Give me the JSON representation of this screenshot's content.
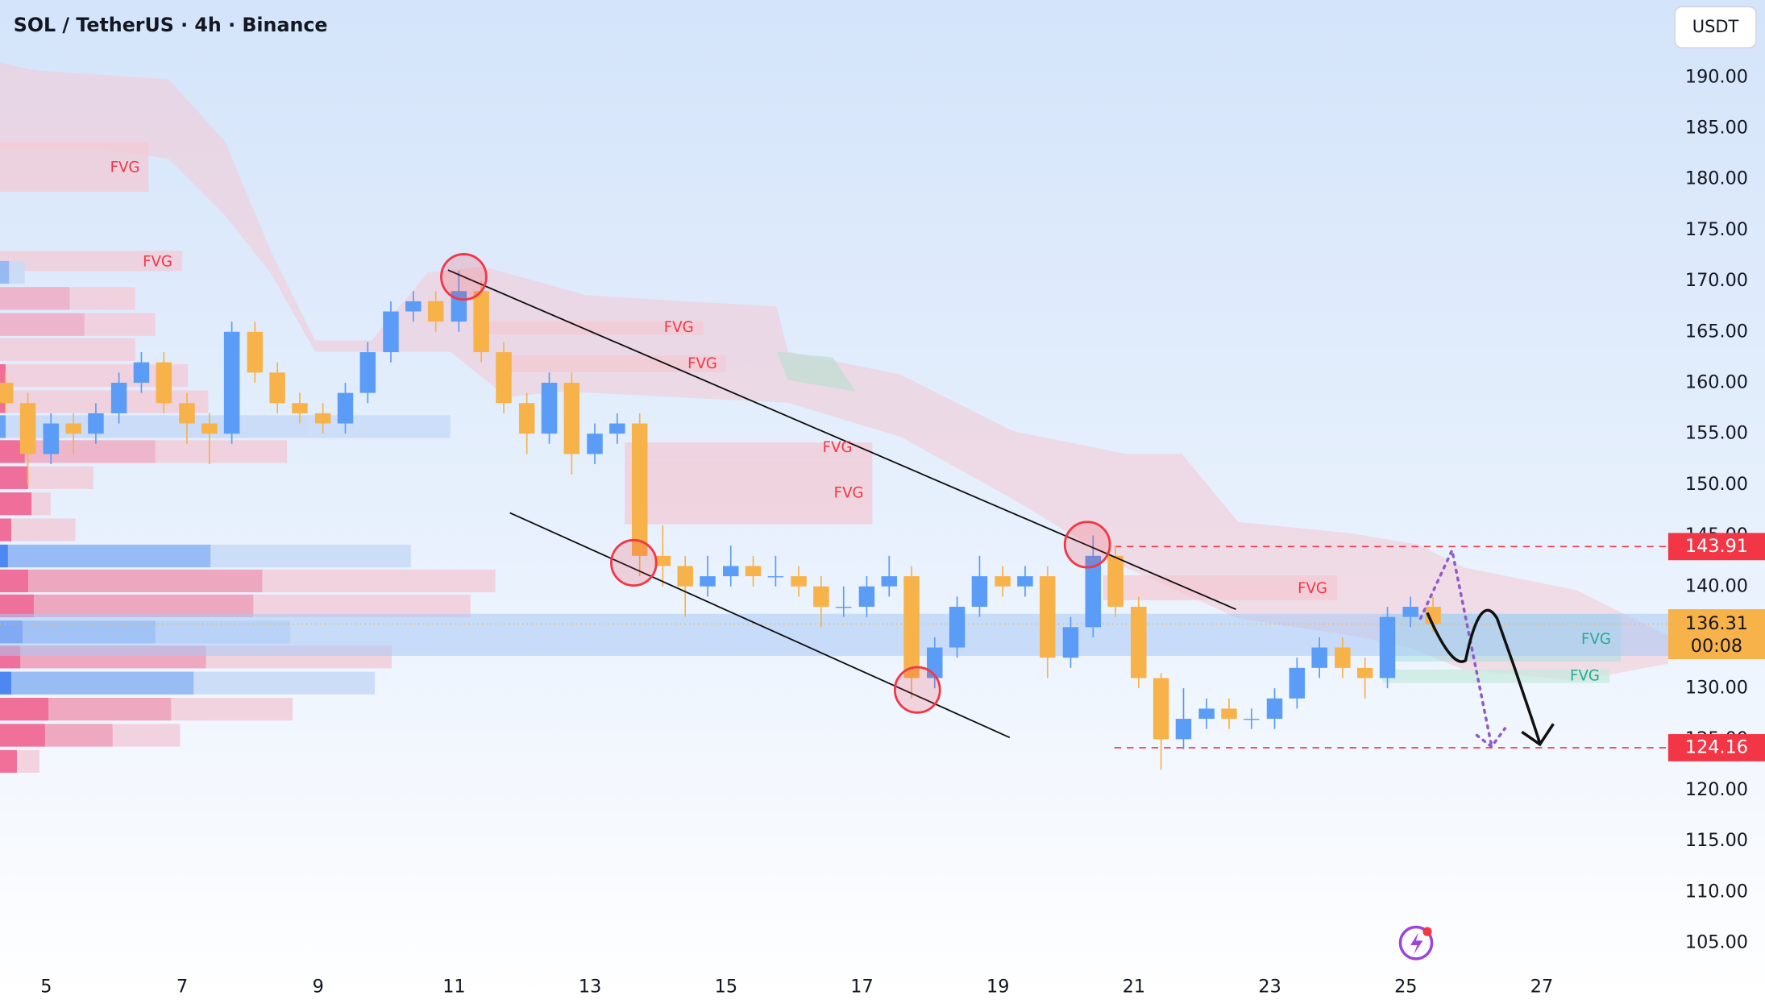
{
  "chart_data": {
    "type": "candlestick",
    "title": "SOL / TetherUS · 4h · Binance",
    "currency": "USDT",
    "x": [
      4.4,
      4.73,
      5.07,
      5.4,
      5.73,
      6.07,
      6.4,
      6.73,
      7.07,
      7.4,
      7.73,
      8.07,
      8.4,
      8.73,
      9.07,
      9.4,
      9.73,
      10.07,
      10.4,
      10.73,
      11.07,
      11.4,
      11.73,
      12.07,
      12.4,
      12.73,
      13.07,
      13.4,
      13.73,
      14.07,
      14.4,
      14.73,
      15.07,
      15.4,
      15.73,
      16.07,
      16.4,
      16.73,
      17.07,
      17.4,
      17.73,
      18.07,
      18.4,
      18.73,
      19.07,
      19.4,
      19.73,
      20.07,
      20.4,
      20.73,
      21.07,
      21.4,
      21.73,
      22.07,
      22.4,
      22.73,
      23.07,
      23.4,
      23.73,
      24.07,
      24.4,
      24.73,
      25.07,
      25.4
    ],
    "open": [
      160,
      158,
      153,
      156,
      155,
      157,
      160,
      162,
      158,
      156,
      155,
      165,
      161,
      158,
      157,
      156,
      159,
      163,
      167,
      168,
      166,
      169,
      163,
      158,
      155,
      160,
      153,
      155,
      156,
      143,
      142,
      140,
      141,
      142,
      141,
      141,
      140,
      138,
      138,
      140,
      141,
      131,
      134,
      138,
      141,
      140,
      141,
      133,
      136,
      143,
      138,
      131,
      125,
      127,
      128,
      127,
      127,
      129,
      132,
      134,
      132,
      131,
      137,
      138
    ],
    "high": [
      161,
      159,
      157,
      157,
      158,
      161,
      163,
      163,
      159,
      157,
      166,
      166,
      162,
      159,
      158,
      160,
      164,
      168,
      169,
      169,
      171,
      170,
      164,
      159,
      161,
      161,
      156,
      157,
      157,
      146,
      143,
      143,
      144,
      143,
      143,
      142,
      141,
      140,
      141,
      143,
      142,
      135,
      139,
      143,
      142,
      142,
      142,
      137,
      145,
      144,
      139,
      131.5,
      130,
      129,
      129,
      128,
      130,
      133,
      135,
      135,
      133,
      138,
      139,
      139
    ],
    "low": [
      157,
      150,
      152,
      153,
      154,
      156,
      159,
      157,
      154,
      152,
      154,
      160,
      157,
      156,
      155,
      155,
      158,
      162,
      166,
      165,
      165,
      162,
      157,
      153,
      154,
      151,
      152,
      154,
      141,
      140,
      137,
      139,
      140,
      140,
      140,
      139,
      136,
      137,
      137,
      139,
      129,
      130,
      133,
      137,
      139,
      139,
      131,
      132,
      135,
      137,
      130,
      122,
      124,
      126,
      126,
      126,
      126,
      128,
      131,
      131,
      129,
      130,
      136,
      135.5
    ],
    "close": [
      158,
      153,
      156,
      155,
      157,
      160,
      162,
      158,
      156,
      155,
      165,
      161,
      158,
      157,
      156,
      159,
      163,
      167,
      168,
      166,
      169,
      163,
      158,
      155,
      160,
      153,
      155,
      156,
      143,
      142,
      140,
      141,
      142,
      141,
      141,
      140,
      138,
      138,
      140,
      141,
      131,
      134,
      138,
      141,
      140,
      141,
      133,
      136,
      143,
      138,
      131,
      125,
      127,
      128,
      127,
      127,
      129,
      132,
      134,
      132,
      131,
      137,
      138,
      136.31
    ],
    "up_color": "#5b9cf6",
    "down_color": "#f7b24a",
    "xlim": [
      4.32,
      28.86
    ],
    "xticks": [
      5,
      7,
      9,
      11,
      13,
      15,
      17,
      19,
      21,
      23,
      25,
      27
    ],
    "ylim": [
      103.1,
      197.58
    ],
    "yticks": [
      {
        "value": 105,
        "label": "105.00"
      },
      {
        "value": 110,
        "label": "110.00"
      },
      {
        "value": 115,
        "label": "115.00"
      },
      {
        "value": 120,
        "label": "120.00"
      },
      {
        "value": 125,
        "label": "125.00"
      },
      {
        "value": 130,
        "label": "130.00"
      },
      {
        "value": 135,
        "label": "135.00"
      },
      {
        "value": 140,
        "label": "140.00"
      },
      {
        "value": 145,
        "label": "145.00"
      },
      {
        "value": 150,
        "label": "150.00"
      },
      {
        "value": 155,
        "label": "155.00"
      },
      {
        "value": 160,
        "label": "160.00"
      },
      {
        "value": 165,
        "label": "165.00"
      },
      {
        "value": 170,
        "label": "170.00"
      },
      {
        "value": 175,
        "label": "175.00"
      },
      {
        "value": 180,
        "label": "180.00"
      },
      {
        "value": 185,
        "label": "185.00"
      },
      {
        "value": 190,
        "label": "190.00"
      }
    ],
    "price_lines": [
      {
        "value": 143.91,
        "color": "#f23645"
      },
      {
        "value": 124.16,
        "color": "#f23645"
      }
    ],
    "last_price": 136.31,
    "last_price_color": "#f7b24a",
    "countdown": "00:08",
    "annotations": [
      "FVG",
      "FVG",
      "FVG",
      "FVG",
      "FVG",
      "FVG",
      "FVG",
      "FVG",
      "FVG"
    ]
  }
}
